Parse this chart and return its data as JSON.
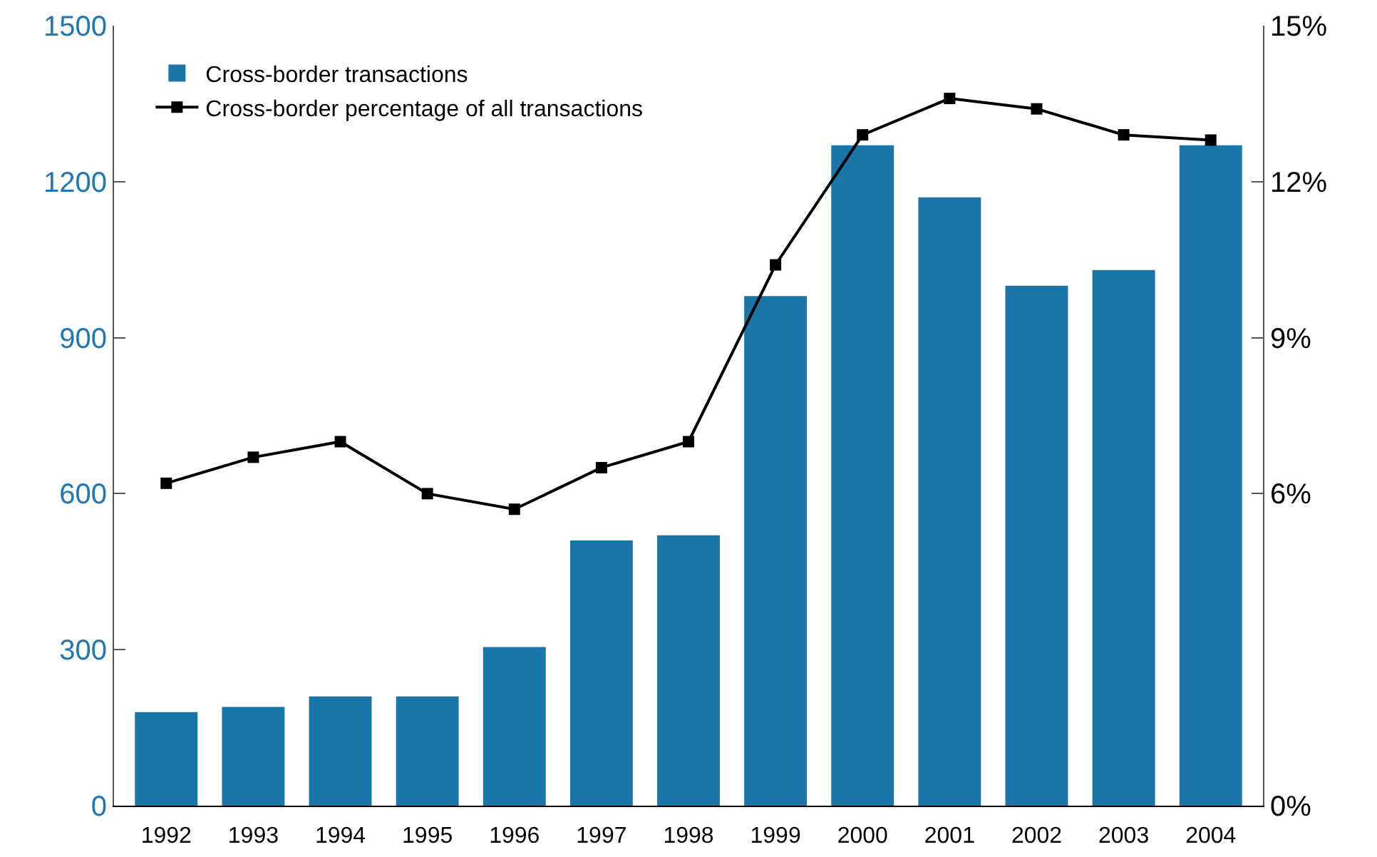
{
  "chart_data": {
    "type": "bar",
    "categories": [
      "1992",
      "1993",
      "1994",
      "1995",
      "1996",
      "1997",
      "1998",
      "1999",
      "2000",
      "2001",
      "2002",
      "2003",
      "2004"
    ],
    "series": [
      {
        "name": "Cross-border transactions",
        "color": "#1a75a8",
        "values": [
          180,
          190,
          210,
          210,
          305,
          510,
          520,
          980,
          1270,
          1170,
          1000,
          1030,
          1270
        ]
      },
      {
        "name": "Cross-border percentage of all transactions",
        "type": "line",
        "axis": "y2",
        "color": "#000000",
        "marker": "square",
        "line_style": "solid",
        "values": [
          6.2,
          6.7,
          7.0,
          6.0,
          5.7,
          6.5,
          7.0,
          10.4,
          12.9,
          13.6,
          13.4,
          12.9,
          12.8
        ]
      }
    ],
    "ylim": [
      0,
      1500
    ],
    "yticks": [
      0,
      300,
      600,
      900,
      1200,
      1500
    ],
    "y2lim": [
      0,
      15
    ],
    "y2ticks": [
      {
        "value": 0,
        "label": "0%"
      },
      {
        "value": 6,
        "label": "6%"
      },
      {
        "value": 9,
        "label": "9%"
      },
      {
        "value": 12,
        "label": "12%"
      },
      {
        "value": 15,
        "label": "15%"
      }
    ],
    "grid": false,
    "legend": "top left"
  }
}
